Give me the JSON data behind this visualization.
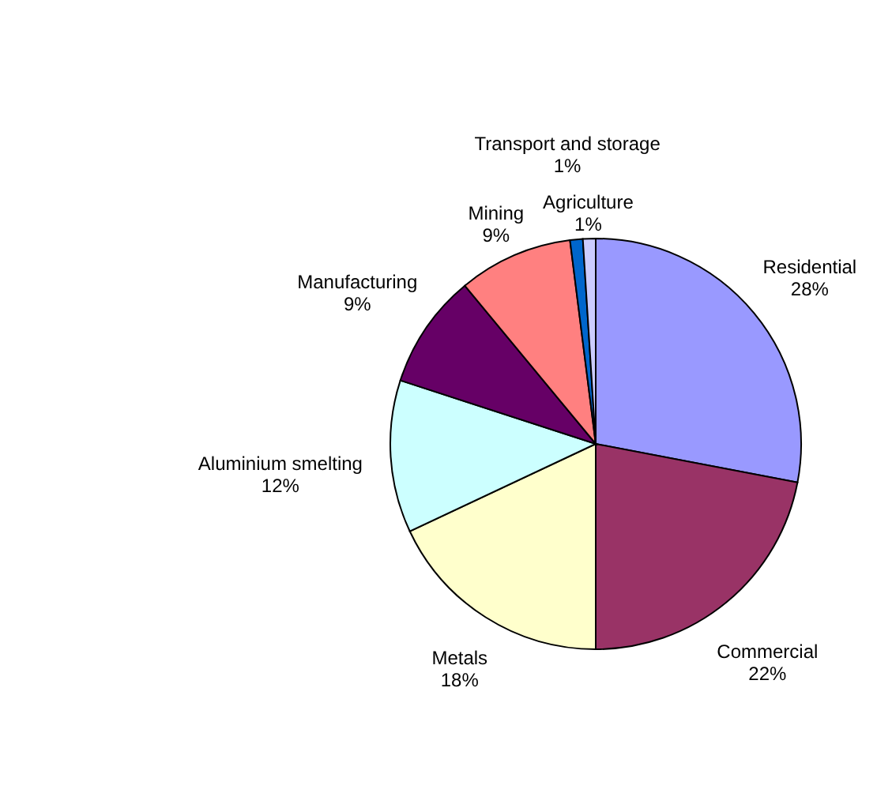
{
  "chart_data": {
    "type": "pie",
    "categories": [
      "Residential",
      "Commercial",
      "Metals",
      "Aluminium smelting",
      "Manufacturing",
      "Mining",
      "Transport and storage",
      "Agriculture"
    ],
    "values": [
      28,
      22,
      18,
      12,
      9,
      9,
      1,
      1
    ],
    "value_labels": [
      "28%",
      "22%",
      "18%",
      "12%",
      "9%",
      "9%",
      "1%",
      "1%"
    ],
    "colors": [
      "#9999ff",
      "#993366",
      "#ffffcc",
      "#ccffff",
      "#660066",
      "#ff8080",
      "#0066cc",
      "#ccccff"
    ],
    "legend": false
  }
}
